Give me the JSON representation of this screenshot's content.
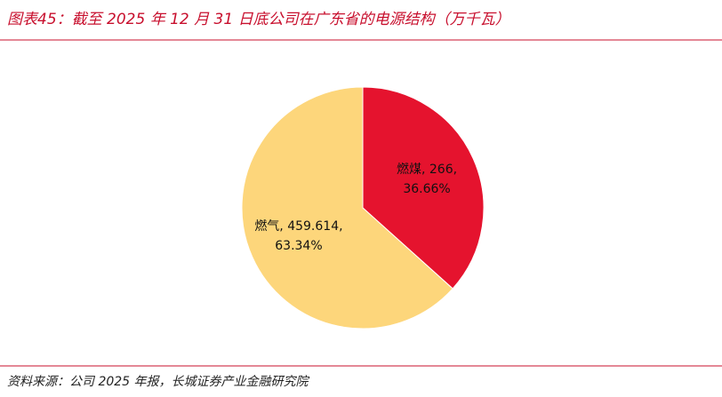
{
  "chart_data": {
    "type": "pie",
    "title": "图表45：截至 2025 年 12 月 31 日底公司在广东省的电源结构（万千瓦）",
    "source": "资料来源：公司 2025 年报，长城证券产业金融研究院",
    "categories": [
      "燃煤",
      "燃气"
    ],
    "values": [
      266,
      459.614
    ],
    "value_labels": [
      "燃煤, 266, 36.66%",
      "燃气, 459.614, 63.34%"
    ],
    "colors": [
      "#e5132e",
      "#fdd67b"
    ]
  }
}
